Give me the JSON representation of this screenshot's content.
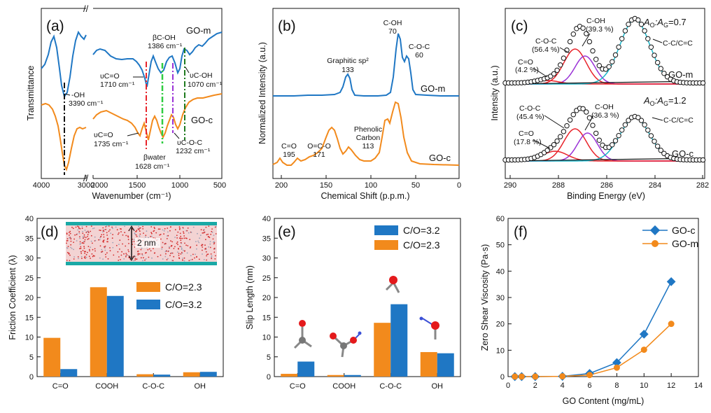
{
  "panels": {
    "a": "(a)",
    "b": "(b)",
    "c": "(c)",
    "d": "(d)",
    "e": "(e)",
    "f": "(f)"
  },
  "colors": {
    "blue": "#1f77c4",
    "orange": "#f28a1c",
    "red": "#e8232a",
    "purple": "#9a32d6",
    "cyan": "#19b5c9",
    "green": "#2ecc40",
    "darkgreen": "#1e7a1e",
    "violet": "#8a2be2"
  },
  "chart_data": [
    {
      "id": "a",
      "type": "line",
      "xlabel": "Wavenumber (cm⁻¹)",
      "ylabel": "Transmittance",
      "xlim": [
        4000,
        500
      ],
      "xticks": [
        "4000",
        "3000",
        "2000",
        "1500",
        "1000",
        "500"
      ],
      "series": [
        {
          "name": "GO-m"
        },
        {
          "name": "GO-c"
        }
      ],
      "annotations": [
        "-OH",
        "3390 cm⁻¹",
        "υC=O",
        "1710 cm⁻¹",
        "βC-OH",
        "1386 cm⁻¹",
        "υC-OH",
        "1070 cm⁻¹",
        "υC=O",
        "1735 cm⁻¹",
        "βwater",
        "1628 cm⁻¹",
        "υC-O-C",
        "1232 cm⁻¹"
      ]
    },
    {
      "id": "b",
      "type": "line",
      "xlabel": "Chemical Shift (p.p.m.)",
      "ylabel": "Normalized Intensity (a.u.)",
      "xlim": [
        220,
        0
      ],
      "xticks": [
        "200",
        "150",
        "100",
        "50",
        "0"
      ],
      "series": [
        {
          "name": "GO-m"
        },
        {
          "name": "GO-c"
        }
      ],
      "annotations": [
        "C-OH",
        "70",
        "C-O-C",
        "60",
        "Graphitic sp²",
        "133",
        "C=O",
        "195",
        "O=C-O",
        "171",
        "Phenolic",
        "Carbon",
        "113"
      ]
    },
    {
      "id": "c",
      "type": "line",
      "xlabel": "Binding Energy (eV)",
      "ylabel": "Intensity (a.u.)",
      "xlim": [
        290,
        282
      ],
      "xticks": [
        "290",
        "288",
        "286",
        "284",
        "282"
      ],
      "series": [
        {
          "name": "GO-m"
        },
        {
          "name": "GO-c"
        }
      ],
      "annotations_top": [
        "C-OH",
        "(39.3 %)",
        "C-O-C",
        "(56.4 %)",
        "C=O",
        "(4.2 %)",
        "C-C/C=C"
      ],
      "annotations_bottom": [
        "C-O-C",
        "(45.4 %)",
        "C-OH",
        "(36.3 %)",
        "C=O",
        "(17.8 %)",
        "C-C/C=C"
      ],
      "ratio_top": {
        "label": "A",
        "sub1": "O",
        "mid": ":A",
        "sub2": "G",
        "value": "=0.7"
      },
      "ratio_bottom": {
        "label": "A",
        "sub1": "O",
        "mid": ":A",
        "sub2": "G",
        "value": "=1.2"
      }
    },
    {
      "id": "d",
      "type": "bar",
      "categories": [
        "C=O",
        "COOH",
        "C-O-C",
        "OH"
      ],
      "series": [
        {
          "name": "C/O=2.3",
          "values": [
            9.8,
            22.6,
            0.6,
            1.1
          ]
        },
        {
          "name": "C/O=3.2",
          "values": [
            1.9,
            20.4,
            0.5,
            1.2
          ]
        }
      ],
      "ylabel": "Friction Coefficient (λ)",
      "ylim": [
        0,
        40
      ],
      "yticks": [
        "0",
        "5",
        "10",
        "15",
        "20",
        "25",
        "30",
        "35",
        "40"
      ],
      "inset_label": "2 nm"
    },
    {
      "id": "e",
      "type": "bar",
      "categories": [
        "C=O",
        "COOH",
        "C-O-C",
        "OH"
      ],
      "series": [
        {
          "name": "C/O=2.3",
          "values": [
            0.7,
            0.4,
            13.6,
            6.2
          ]
        },
        {
          "name": "C/O=3.2",
          "values": [
            3.8,
            0.4,
            18.3,
            5.9
          ]
        }
      ],
      "legend_order": [
        "C/O=3.2",
        "C/O=2.3"
      ],
      "ylabel": "Slip Length (nm)",
      "ylim": [
        0,
        40
      ],
      "yticks": [
        "0",
        "5",
        "10",
        "15",
        "20",
        "25",
        "30",
        "35",
        "40"
      ]
    },
    {
      "id": "f",
      "type": "line",
      "x": [
        0.5,
        1,
        2,
        4,
        6,
        8,
        10,
        12
      ],
      "series": [
        {
          "name": "GO-c",
          "values": [
            0,
            0,
            0,
            0.1,
            1.2,
            5.3,
            16.1,
            36.0
          ]
        },
        {
          "name": "GO-m",
          "values": [
            0,
            0,
            0,
            0.1,
            0.6,
            3.4,
            10.2,
            20.0
          ]
        }
      ],
      "xlabel": "GO Content (mg/mL)",
      "ylabel": "Zero Shear Viscosity (Pa·s)",
      "xlim": [
        0,
        14
      ],
      "ylim": [
        0,
        60
      ],
      "xticks": [
        "0",
        "2",
        "4",
        "6",
        "8",
        "10",
        "12",
        "14"
      ],
      "yticks": [
        "0",
        "10",
        "20",
        "30",
        "40",
        "50",
        "60"
      ]
    }
  ]
}
